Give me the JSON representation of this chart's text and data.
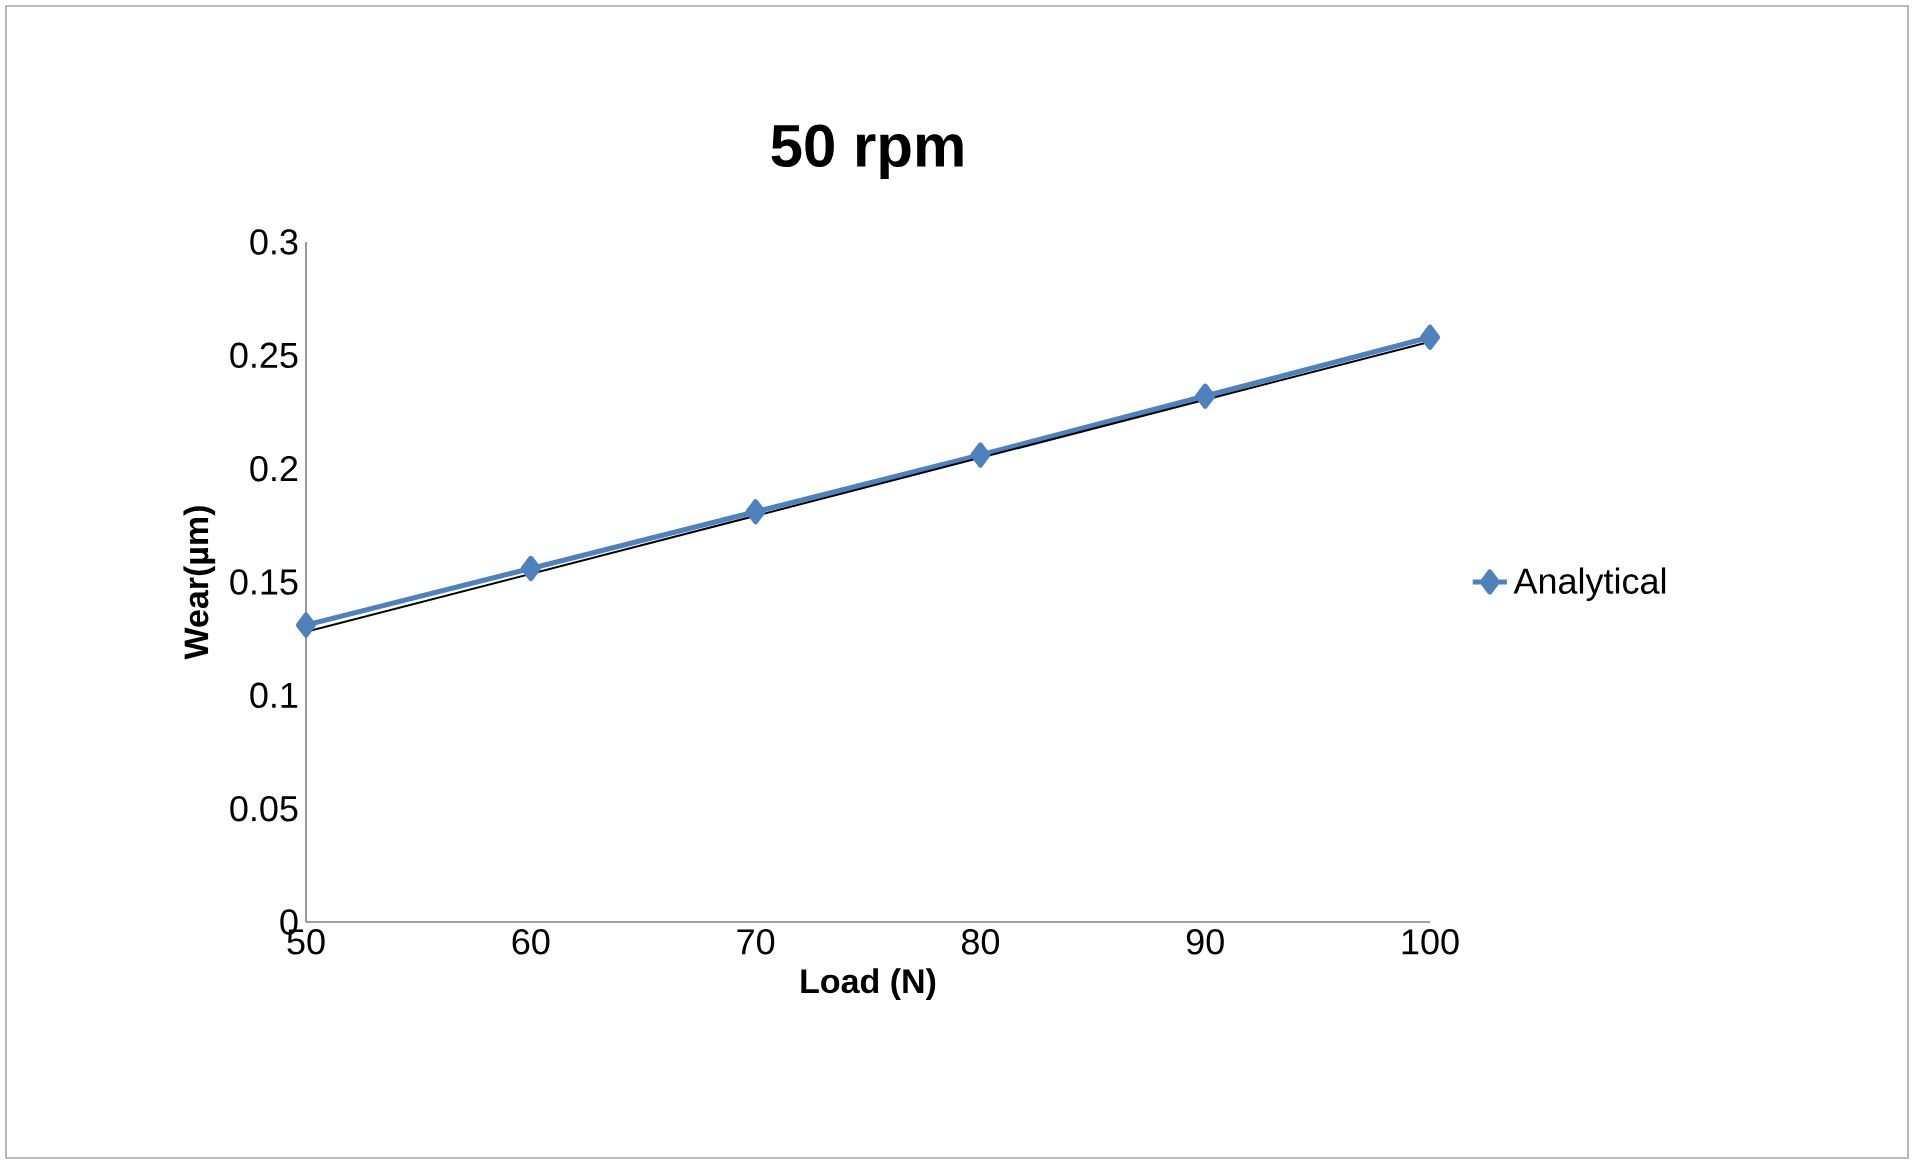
{
  "chart_data": {
    "type": "line",
    "title": "50 rpm",
    "xlabel": "Load (N)",
    "ylabel": "Wear(µm)",
    "x": [
      50,
      60,
      70,
      80,
      90,
      100
    ],
    "series": [
      {
        "name": "Analytical",
        "color": "#4f81bd",
        "values": [
          0.131,
          0.156,
          0.181,
          0.206,
          0.232,
          0.258
        ],
        "marker": "diamond"
      },
      {
        "type": "line",
        "color": "#000000",
        "x": [
          50,
          100
        ],
        "values": [
          0.128,
          0.256
        ],
        "marker": "none"
      }
    ],
    "xlim": [
      50,
      100
    ],
    "ylim": [
      0,
      0.3
    ],
    "xticks": [
      50,
      60,
      70,
      80,
      90,
      100
    ],
    "yticks": [
      0,
      0.05,
      0.1,
      0.15,
      0.2,
      0.25,
      0.3
    ],
    "grid": false,
    "legend": "right"
  }
}
